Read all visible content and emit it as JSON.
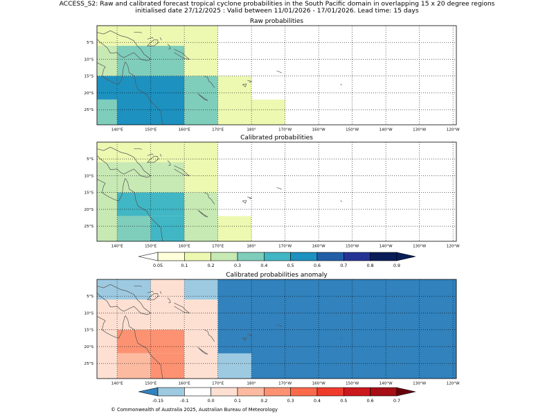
{
  "header": {
    "title": "ACCESS_S2: Raw and calibrated forecast tropical cyclone probabilities in the South Pacific domain in overlapping 15 x 20 degree regions",
    "subtitle": "initialised date 27/12/2025 :  Valid between 11/01/2026 - 17/01/2026. Lead time: 15 days"
  },
  "footer": {
    "copyright": "© Commonwealth of Australia 2025, Australian Bureau of Meteorology"
  },
  "colors": {
    "prob_scale": [
      "#ffffff",
      "#ffffd9",
      "#edf8b1",
      "#c7e9b4",
      "#7fcdbb",
      "#41b6c4",
      "#1d91c0",
      "#225ea8",
      "#253494",
      "#081d58"
    ],
    "anom_scale": [
      "#3182bd",
      "#9ecae1",
      "#ffffff",
      "#fee0d2",
      "#fcbba1",
      "#fc9272",
      "#fb6a4a",
      "#ef3b2c",
      "#cb181d",
      "#a50f15",
      "#67000d"
    ],
    "coast": "#555555",
    "grid": "#000000"
  },
  "chart_data": [
    {
      "type": "heatmap",
      "title": "Raw probabilities",
      "x_range": [
        134,
        241
      ],
      "y_range": [
        -29.5,
        0
      ],
      "grid_lon": [
        140,
        150,
        160,
        170,
        180,
        190,
        200,
        210,
        220,
        230,
        240
      ],
      "grid_lat": [
        -5,
        -10,
        -15,
        -20,
        -25
      ],
      "x_tick_labels": [
        "140°E",
        "150°E",
        "160°E",
        "170°E",
        "180°",
        "170°W",
        "160°W",
        "150°W",
        "140°W",
        "130°W",
        "120°W"
      ],
      "y_tick_labels": [
        "5°S",
        "10°S",
        "15°S",
        "20°S",
        "25°S"
      ],
      "cells": [
        {
          "lon": [
            134,
            140
          ],
          "lat": [
            -6,
            0
          ],
          "value": 0.15
        },
        {
          "lon": [
            140,
            160
          ],
          "lat": [
            -6,
            0
          ],
          "value": 0.15
        },
        {
          "lon": [
            160,
            170
          ],
          "lat": [
            -6,
            0
          ],
          "value": 0.1
        },
        {
          "lon": [
            160,
            170
          ],
          "lat": [
            -15,
            -6
          ],
          "value": 0.15
        },
        {
          "lon": [
            134,
            140
          ],
          "lat": [
            -15,
            -6
          ],
          "value": 0.25
        },
        {
          "lon": [
            140,
            160
          ],
          "lat": [
            -15,
            -6
          ],
          "value": 0.35
        },
        {
          "lon": [
            134,
            140
          ],
          "lat": [
            -22,
            -15
          ],
          "value": 0.55
        },
        {
          "lon": [
            134,
            140
          ],
          "lat": [
            -29.5,
            -22
          ],
          "value": 0.35
        },
        {
          "lon": [
            140,
            160
          ],
          "lat": [
            -29.5,
            -15
          ],
          "value": 0.55
        },
        {
          "lon": [
            160,
            170
          ],
          "lat": [
            -29.5,
            -15
          ],
          "value": 0.35
        },
        {
          "lon": [
            170,
            180
          ],
          "lat": [
            -29.5,
            -15
          ],
          "value": 0.1
        },
        {
          "lon": [
            180,
            190
          ],
          "lat": [
            -29.5,
            -22
          ],
          "value": 0.1
        }
      ]
    },
    {
      "type": "heatmap",
      "title": "Calibrated probabilities",
      "x_range": [
        134,
        241
      ],
      "y_range": [
        -29.5,
        0
      ],
      "grid_lon": [
        140,
        150,
        160,
        170,
        180,
        190,
        200,
        210,
        220,
        230,
        240
      ],
      "grid_lat": [
        -5,
        -10,
        -15,
        -20,
        -25
      ],
      "x_tick_labels": [
        "140°E",
        "150°E",
        "160°E",
        "170°E",
        "180°",
        "170°W",
        "160°W",
        "150°W",
        "140°W",
        "130°W",
        "120°W"
      ],
      "y_tick_labels": [
        "5°S",
        "10°S",
        "15°S",
        "20°S",
        "25°S"
      ],
      "cells": [
        {
          "lon": [
            134,
            140
          ],
          "lat": [
            -6,
            0
          ],
          "value": 0.1
        },
        {
          "lon": [
            140,
            150
          ],
          "lat": [
            -6,
            0
          ],
          "value": 0.1
        },
        {
          "lon": [
            150,
            160
          ],
          "lat": [
            -6,
            0
          ],
          "value": 0.15
        },
        {
          "lon": [
            160,
            170
          ],
          "lat": [
            -6,
            0
          ],
          "value": 0.1
        },
        {
          "lon": [
            160,
            170
          ],
          "lat": [
            -15,
            -6
          ],
          "value": 0.15
        },
        {
          "lon": [
            134,
            140
          ],
          "lat": [
            -29.5,
            -6
          ],
          "value": 0.25
        },
        {
          "lon": [
            140,
            160
          ],
          "lat": [
            -15,
            -6
          ],
          "value": 0.25
        },
        {
          "lon": [
            140,
            160
          ],
          "lat": [
            -22,
            -15
          ],
          "value": 0.45
        },
        {
          "lon": [
            140,
            150
          ],
          "lat": [
            -29.5,
            -22
          ],
          "value": 0.35
        },
        {
          "lon": [
            150,
            160
          ],
          "lat": [
            -29.5,
            -22
          ],
          "value": 0.45
        },
        {
          "lon": [
            160,
            170
          ],
          "lat": [
            -29.5,
            -15
          ],
          "value": 0.25
        },
        {
          "lon": [
            170,
            180
          ],
          "lat": [
            -29.5,
            -22
          ],
          "value": 0.1
        }
      ],
      "colorbar": {
        "levels": [
          0.05,
          0.1,
          0.2,
          0.3,
          0.4,
          0.5,
          0.6,
          0.7,
          0.8,
          0.9
        ],
        "labels": [
          "0.05",
          "0.1",
          "0.2",
          "0.3",
          "0.4",
          "0.5",
          "0.6",
          "0.7",
          "0.8",
          "0.9"
        ],
        "extend": "both"
      }
    },
    {
      "type": "heatmap",
      "title": "Calibrated probabilities anomaly",
      "x_range": [
        134,
        241
      ],
      "y_range": [
        -29.5,
        0
      ],
      "grid_lon": [
        140,
        150,
        160,
        170,
        180,
        190,
        200,
        210,
        220,
        230,
        240
      ],
      "grid_lat": [
        -5,
        -10,
        -15,
        -20,
        -25
      ],
      "x_tick_labels": [
        "140°E",
        "150°E",
        "160°E",
        "170°E",
        "180°",
        "170°W",
        "160°W",
        "150°W",
        "140°W",
        "130°W",
        "120°W"
      ],
      "y_tick_labels": [
        "5°S",
        "10°S",
        "15°S",
        "20°S",
        "25°S"
      ],
      "cells": [
        {
          "lon": [
            134,
            150
          ],
          "lat": [
            -6,
            0
          ],
          "value": -0.12
        },
        {
          "lon": [
            150,
            160
          ],
          "lat": [
            -6,
            0
          ],
          "value": 0.0
        },
        {
          "lon": [
            160,
            170
          ],
          "lat": [
            -6,
            0
          ],
          "value": -0.12
        },
        {
          "lon": [
            170,
            241
          ],
          "lat": [
            -29.5,
            0
          ],
          "value": -0.2
        },
        {
          "lon": [
            134,
            140
          ],
          "lat": [
            -29.5,
            -6
          ],
          "value": 0.05
        },
        {
          "lon": [
            140,
            150
          ],
          "lat": [
            -15,
            -6
          ],
          "value": 0.05
        },
        {
          "lon": [
            150,
            160
          ],
          "lat": [
            -15,
            -6
          ],
          "value": 0.05
        },
        {
          "lon": [
            160,
            170
          ],
          "lat": [
            -15,
            -6
          ],
          "value": 0.0
        },
        {
          "lon": [
            140,
            160
          ],
          "lat": [
            -22,
            -15
          ],
          "value": 0.25
        },
        {
          "lon": [
            140,
            150
          ],
          "lat": [
            -29.5,
            -22
          ],
          "value": 0.15
        },
        {
          "lon": [
            150,
            160
          ],
          "lat": [
            -29.5,
            -22
          ],
          "value": 0.25
        },
        {
          "lon": [
            160,
            170
          ],
          "lat": [
            -29.5,
            -15
          ],
          "value": 0.05
        },
        {
          "lon": [
            170,
            180
          ],
          "lat": [
            -29.5,
            -22
          ],
          "value": -0.12
        }
      ],
      "colorbar": {
        "levels": [
          -0.15,
          -0.1,
          0.0,
          0.1,
          0.2,
          0.3,
          0.4,
          0.5,
          0.6,
          0.7
        ],
        "labels": [
          "-0.15",
          "-0.1",
          "0.0",
          "0.1",
          "0.2",
          "0.3",
          "0.4",
          "0.5",
          "0.6",
          "0.7"
        ],
        "extend": "both"
      }
    }
  ]
}
